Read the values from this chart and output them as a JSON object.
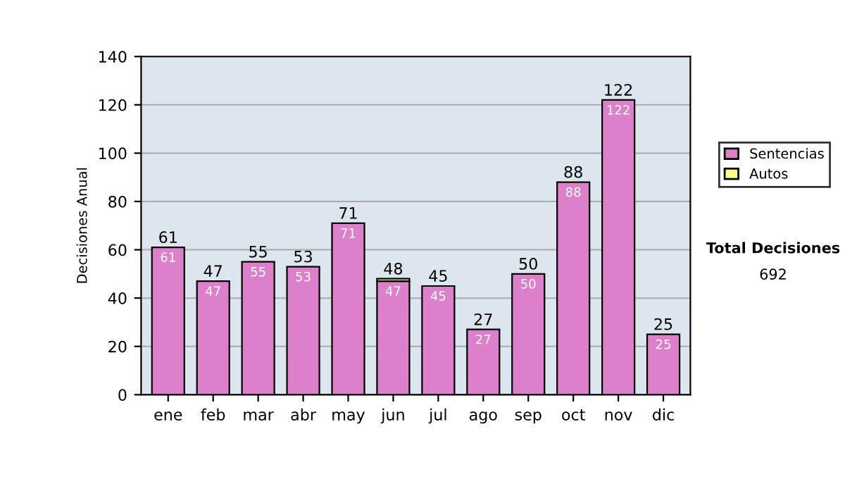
{
  "chart_data": {
    "type": "bar",
    "stacked": true,
    "ylabel": "Decisiones Anual",
    "categories": [
      "ene",
      "feb",
      "mar",
      "abr",
      "may",
      "jun",
      "jul",
      "ago",
      "sep",
      "oct",
      "nov",
      "dic"
    ],
    "series": [
      {
        "name": "Sentencias",
        "color": "#dd80cc",
        "values": [
          61,
          47,
          55,
          53,
          71,
          47,
          45,
          27,
          50,
          88,
          122,
          25
        ],
        "value_labels": [
          "61",
          "47",
          "55",
          "53",
          "71",
          "47",
          "45",
          "27",
          "50",
          "88",
          "122",
          "25"
        ]
      },
      {
        "name": "Autos",
        "color": "#ffff88",
        "values": [
          null,
          null,
          null,
          null,
          null,
          1,
          null,
          null,
          null,
          null,
          null,
          null
        ]
      }
    ],
    "totals": [
      "61",
      "47",
      "55",
      "53",
      "71",
      "48",
      "45",
      "27",
      "50",
      "88",
      "122",
      "25"
    ],
    "ylim": [
      0,
      140
    ],
    "yticks": [
      0,
      20,
      40,
      60,
      80,
      100,
      120,
      140
    ],
    "grid": "y",
    "legend": "right",
    "annotations": [
      "Total Decisiones",
      "692"
    ]
  }
}
